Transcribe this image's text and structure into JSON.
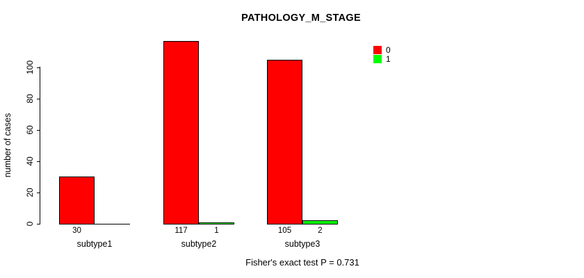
{
  "chart_data": {
    "type": "bar",
    "title": "PATHOLOGY_M_STAGE",
    "ylabel": "number of cases",
    "xlabel": "",
    "categories": [
      "subtype1",
      "subtype2",
      "subtype3"
    ],
    "series": [
      {
        "name": "0",
        "color": "#ff0000",
        "values": [
          30,
          117,
          105
        ]
      },
      {
        "name": "1",
        "color": "#00ff00",
        "values": [
          0,
          1,
          2
        ]
      }
    ],
    "yticks": [
      0,
      20,
      40,
      60,
      80,
      100
    ],
    "ylim": [
      0,
      117
    ],
    "grid": false,
    "legend_position": "top-right",
    "bar_value_labels_shown": true,
    "note": "Fisher's exact test P = 0.731"
  }
}
